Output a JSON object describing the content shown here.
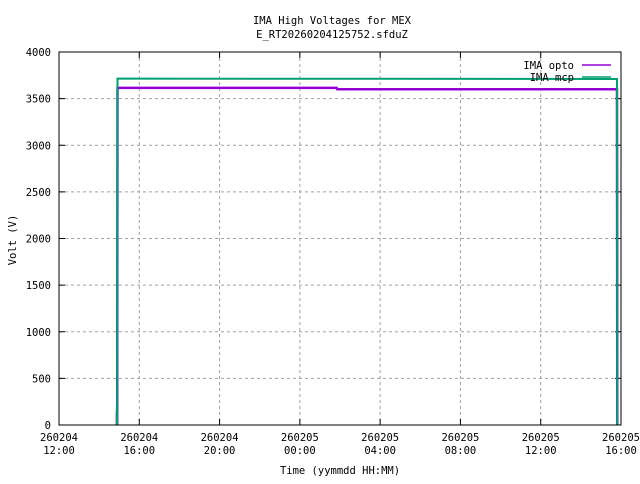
{
  "chart_data": {
    "type": "line",
    "title": "IMA High Voltages for MEX",
    "subtitle": "E_RT20260204125752.sfduZ",
    "xlabel": "Time (yymmdd HH:MM)",
    "ylabel": "Volt (V)",
    "xlim": [
      "2026-02-04 12:00",
      "2026-02-05 16:00"
    ],
    "ylim": [
      0,
      4000
    ],
    "grid": true,
    "legend": "top-right",
    "yticks": [
      "0",
      "500",
      "1000",
      "1500",
      "2000",
      "2500",
      "3000",
      "3500",
      "4000"
    ],
    "xticks": [
      {
        "t": "2026-02-04 12:00",
        "l1": "260204",
        "l2": "12:00"
      },
      {
        "t": "2026-02-04 16:00",
        "l1": "260204",
        "l2": "16:00"
      },
      {
        "t": "2026-02-04 20:00",
        "l1": "260204",
        "l2": "20:00"
      },
      {
        "t": "2026-02-05 00:00",
        "l1": "260205",
        "l2": "00:00"
      },
      {
        "t": "2026-02-05 04:00",
        "l1": "260205",
        "l2": "04:00"
      },
      {
        "t": "2026-02-05 08:00",
        "l1": "260205",
        "l2": "08:00"
      },
      {
        "t": "2026-02-05 12:00",
        "l1": "260205",
        "l2": "12:00"
      },
      {
        "t": "2026-02-05 16:00",
        "l1": "260205",
        "l2": "16:00"
      }
    ],
    "series": [
      {
        "name": "IMA opto",
        "color": "#9400d3",
        "points": [
          [
            "2026-02-04 14:53",
            0
          ],
          [
            "2026-02-04 14:53",
            100
          ],
          [
            "2026-02-04 14:54",
            180
          ],
          [
            "2026-02-04 14:54",
            0
          ],
          [
            "2026-02-04 14:55",
            3615
          ],
          [
            "2026-02-05 01:50",
            3615
          ],
          [
            "2026-02-05 01:52",
            3600
          ],
          [
            "2026-02-05 15:48",
            3600
          ],
          [
            "2026-02-05 15:49",
            0
          ]
        ]
      },
      {
        "name": "IMA mcp",
        "color": "#009e73",
        "points": [
          [
            "2026-02-04 14:53",
            0
          ],
          [
            "2026-02-04 14:53",
            200
          ],
          [
            "2026-02-04 14:54",
            0
          ],
          [
            "2026-02-04 14:55",
            3715
          ],
          [
            "2026-02-05 15:48",
            3710
          ],
          [
            "2026-02-05 15:49",
            0
          ]
        ]
      }
    ]
  }
}
